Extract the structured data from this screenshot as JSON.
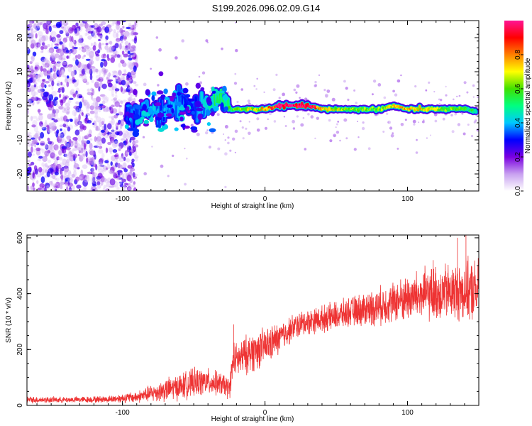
{
  "figure_title": "S199.2026.096.02.09.G14",
  "chart_data": [
    {
      "type": "heatmap",
      "title": "S199.2026.096.02.09.G14",
      "xlabel": "Height of straight line (km)",
      "ylabel": "Frequency (Hz)",
      "xlim": [
        -167,
        150
      ],
      "ylim": [
        -25,
        25
      ],
      "x_ticks": [
        -100,
        0,
        100
      ],
      "y_ticks": [
        -20,
        -10,
        0,
        10,
        20
      ],
      "colorbar": {
        "label": "Normalized spectral amplitude",
        "range": [
          0,
          1
        ],
        "ticks": [
          0.0,
          0.2,
          0.4,
          0.6,
          0.8
        ],
        "colormap": [
          "#ffffff",
          "#c8a0f0",
          "#7a00e0",
          "#0000ff",
          "#00c8ff",
          "#00ff80",
          "#40e000",
          "#ffff00",
          "#ff8000",
          "#ff0000",
          "#ff1493"
        ]
      },
      "ridge": {
        "x": [
          -97,
          -90,
          -80,
          -70,
          -60,
          -50,
          -40,
          -30,
          -25,
          -20,
          -10,
          0,
          10,
          20,
          30,
          40,
          50,
          60,
          70,
          80,
          90,
          100,
          110,
          120,
          130,
          140,
          148
        ],
        "freq": [
          -4,
          -3,
          -1,
          -2,
          0,
          -1,
          1,
          2,
          -1,
          -1,
          -1,
          -1,
          0,
          0,
          0,
          -1,
          -1,
          -1,
          -1,
          -1,
          0,
          -1,
          -1,
          -1,
          -1,
          -1,
          -1.5
        ],
        "amplitude": [
          0.3,
          0.35,
          0.4,
          0.35,
          0.35,
          0.3,
          0.45,
          0.5,
          0.55,
          0.6,
          0.65,
          0.75,
          0.95,
          0.98,
          0.95,
          0.75,
          0.65,
          0.62,
          0.6,
          0.62,
          0.7,
          0.75,
          0.7,
          0.65,
          0.6,
          0.55,
          0.5
        ]
      },
      "noise_scatter_region": {
        "x_range": [
          -167,
          -90
        ],
        "freq_range": [
          -25,
          25
        ],
        "amplitude": [
          0.05,
          0.3
        ]
      }
    },
    {
      "type": "line",
      "xlabel": "Height of straight line (km)",
      "ylabel": "SNR (10 * v/v)",
      "xlim": [
        -167,
        150
      ],
      "ylim": [
        0,
        610
      ],
      "x_ticks": [
        -100,
        0,
        100
      ],
      "y_ticks": [
        0,
        200,
        400,
        600
      ],
      "color": "#ee3333",
      "envelope": {
        "x": [
          -167,
          -140,
          -110,
          -90,
          -70,
          -50,
          -40,
          -30,
          -25,
          -22,
          -20,
          -10,
          0,
          10,
          20,
          30,
          40,
          50,
          60,
          70,
          80,
          90,
          100,
          110,
          120,
          130,
          140,
          150
        ],
        "mean": [
          20,
          20,
          22,
          30,
          55,
          80,
          85,
          75,
          60,
          170,
          160,
          190,
          210,
          240,
          280,
          300,
          310,
          320,
          335,
          345,
          355,
          370,
          385,
          395,
          400,
          405,
          410,
          410
        ],
        "spread": [
          12,
          10,
          12,
          20,
          40,
          50,
          45,
          40,
          40,
          60,
          60,
          70,
          65,
          55,
          45,
          45,
          45,
          50,
          50,
          60,
          65,
          70,
          80,
          90,
          95,
          100,
          105,
          110
        ]
      },
      "spikes": [
        {
          "x": -22,
          "y": 290
        },
        {
          "x": 118,
          "y": 520
        },
        {
          "x": 135,
          "y": 600
        },
        {
          "x": 141,
          "y": 610
        }
      ]
    }
  ]
}
